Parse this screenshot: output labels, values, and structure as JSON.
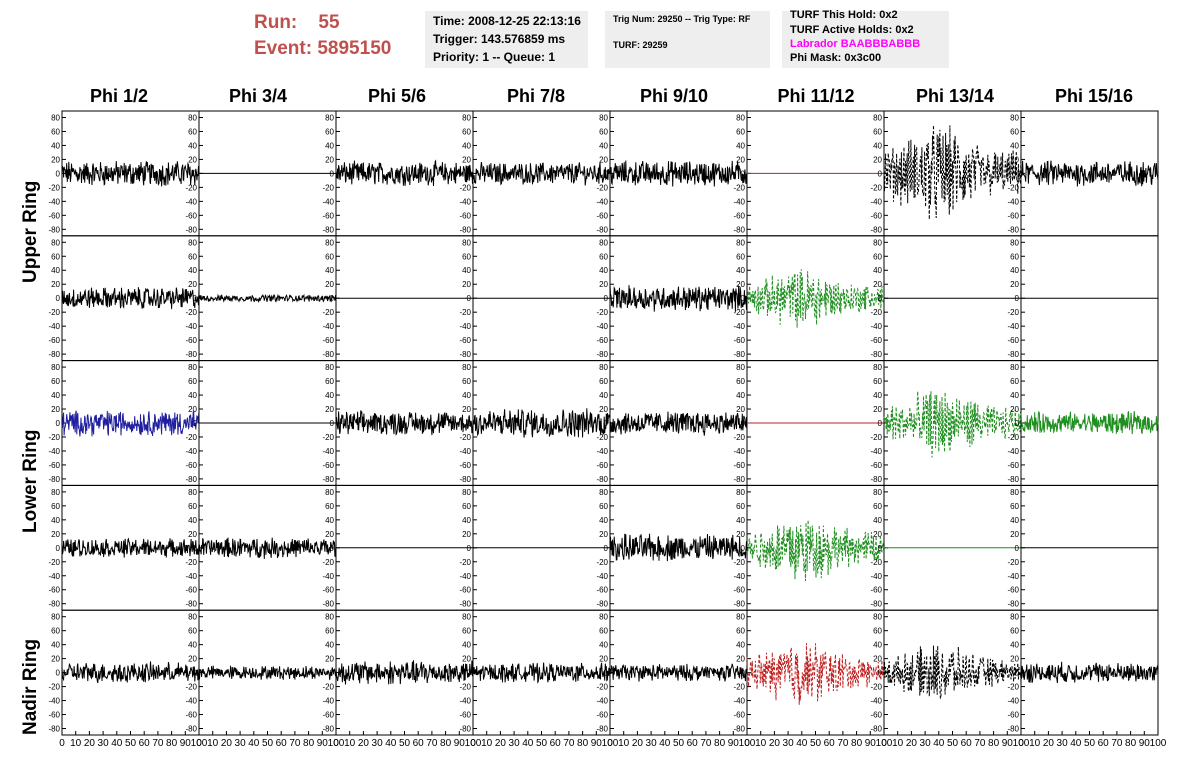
{
  "header": {
    "run_label": "Run:",
    "run_value": "55",
    "event_label": "Event:",
    "event_value": "5895150"
  },
  "info_box_1": {
    "time": "Time: 2008-12-25 22:13:16",
    "trigger": "Trigger: 143.576859 ms",
    "priority": "Priority: 1 -- Queue: 1"
  },
  "info_box_2": {
    "trig": "Trig Num: 29250 -- Trig Type: RF",
    "turf": "TURF: 29259"
  },
  "info_box_3": {
    "this_hold": "TURF This Hold: 0x2",
    "active_holds": "TURF Active Holds: 0x2",
    "labrador": "Labrador BAABBBABBB",
    "phi_mask": "Phi Mask: 0x3c00"
  },
  "colors": {
    "title_red": "#c0504d",
    "info_bg": "#eeeeee",
    "labrador_magenta": "#ff00ff",
    "trace_black": "#000000",
    "trace_blue": "#1f1f9f",
    "trace_green": "#1f8f1f",
    "trace_red": "#c02020"
  },
  "column_headers": [
    "Phi 1/2",
    "Phi 3/4",
    "Phi 5/6",
    "Phi 7/8",
    "Phi 9/10",
    "Phi 11/12",
    "Phi 13/14",
    "Phi 15/16"
  ],
  "row_headers": [
    "Upper Ring",
    "Lower Ring",
    "Nadir Ring"
  ],
  "chart_data": {
    "type": "line",
    "layout": "grid of 5 rows x 8 columns of waveform panels",
    "x_ticks": [
      0,
      10,
      20,
      30,
      40,
      50,
      60,
      70,
      80,
      90,
      100
    ],
    "xlim": [
      0,
      100
    ],
    "y_ticks": [
      80,
      60,
      40,
      20,
      0,
      -20,
      -40,
      -60,
      -80
    ],
    "ylim": [
      -85,
      85
    ],
    "grid": false,
    "panels": [
      [
        {
          "style": "solid",
          "color": "black",
          "amp": 15
        },
        {
          "style": "solid",
          "color": "black",
          "amp": 0
        },
        {
          "style": "solid",
          "color": "black",
          "amp": 14
        },
        {
          "style": "solid",
          "color": "black",
          "amp": 13
        },
        {
          "style": "solid",
          "color": "black",
          "amp": 15
        },
        {
          "style": "solid",
          "color": "red",
          "amp": 0
        },
        {
          "style": "dashed",
          "color": "black",
          "amp": 45
        },
        {
          "style": "solid",
          "color": "black",
          "amp": 15
        }
      ],
      [
        {
          "style": "solid",
          "color": "black",
          "amp": 13
        },
        {
          "style": "solid",
          "color": "black",
          "amp": 4
        },
        {
          "style": "solid",
          "color": "black",
          "amp": 0
        },
        {
          "style": "solid",
          "color": "black",
          "amp": 0
        },
        {
          "style": "solid",
          "color": "black",
          "amp": 15
        },
        {
          "style": "dashed",
          "color": "green",
          "amp": 28
        },
        {
          "style": "solid",
          "color": "black",
          "amp": 0
        },
        {
          "style": "solid",
          "color": "black",
          "amp": 0
        }
      ],
      [
        {
          "style": "solid",
          "color": "blue",
          "amp": 15
        },
        {
          "style": "solid",
          "color": "black",
          "amp": 0
        },
        {
          "style": "solid",
          "color": "black",
          "amp": 14
        },
        {
          "style": "solid",
          "color": "black",
          "amp": 17
        },
        {
          "style": "solid",
          "color": "black",
          "amp": 14
        },
        {
          "style": "solid",
          "color": "red",
          "amp": 0
        },
        {
          "style": "dashed",
          "color": "green",
          "amp": 32
        },
        {
          "style": "solid",
          "color": "green",
          "amp": 13
        }
      ],
      [
        {
          "style": "solid",
          "color": "black",
          "amp": 11
        },
        {
          "style": "solid",
          "color": "black",
          "amp": 12
        },
        {
          "style": "solid",
          "color": "black",
          "amp": 0
        },
        {
          "style": "solid",
          "color": "black",
          "amp": 0
        },
        {
          "style": "solid",
          "color": "black",
          "amp": 16
        },
        {
          "style": "dashed",
          "color": "green",
          "amp": 32
        },
        {
          "style": "solid",
          "color": "green",
          "amp": 0
        },
        {
          "style": "solid",
          "color": "black",
          "amp": 0
        }
      ],
      [
        {
          "style": "solid",
          "color": "black",
          "amp": 12
        },
        {
          "style": "solid",
          "color": "black",
          "amp": 8
        },
        {
          "style": "solid",
          "color": "black",
          "amp": 14
        },
        {
          "style": "solid",
          "color": "black",
          "amp": 11
        },
        {
          "style": "solid",
          "color": "black",
          "amp": 10
        },
        {
          "style": "dashed",
          "color": "red",
          "amp": 30
        },
        {
          "style": "dashed",
          "color": "black",
          "amp": 26
        },
        {
          "style": "solid",
          "color": "black",
          "amp": 12
        }
      ]
    ]
  }
}
